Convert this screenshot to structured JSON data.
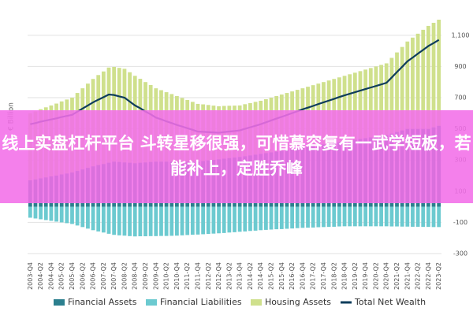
{
  "chart_data": {
    "type": "bar",
    "stacked": true,
    "ylabel": "€ Billion",
    "categories": [
      "2003-Q4",
      null,
      "2004-Q2",
      null,
      "2004-Q4",
      null,
      "2005-Q2",
      null,
      "2005-Q4",
      null,
      "2006-Q2",
      null,
      "2006-Q4",
      null,
      "2007-Q2",
      null,
      "2007-Q4",
      null,
      "2008-Q2",
      null,
      "2008-Q4",
      null,
      "2009-Q2",
      null,
      "2009-Q4",
      null,
      "2010-Q2",
      null,
      "2010-Q4",
      null,
      "2011-Q2",
      null,
      "2011-Q4",
      null,
      "2012-Q2",
      null,
      "2012-Q4",
      null,
      "2013-Q2",
      null,
      "2013-Q4",
      null,
      "2014-Q2",
      null,
      "2014-Q4",
      null,
      "2015-Q2",
      null,
      "2015-Q4",
      null,
      "2016-Q2",
      null,
      "2016-Q4",
      null,
      "2017-Q2",
      null,
      "2017-Q4",
      null,
      "2018-Q2",
      null,
      "2018-Q4",
      null,
      "2019-Q2",
      null,
      "2019-Q4",
      null,
      "2020-Q2",
      null,
      "2020-Q4",
      null,
      "2021-Q2",
      null,
      "2021-Q4",
      null,
      "2022-Q2",
      null,
      "2022-Q4",
      null,
      "2023-Q2"
    ],
    "series": [
      {
        "name": "Financial Assets",
        "color": "#2b7f8e",
        "values": [
          170,
          176,
          183,
          189,
          195,
          201,
          208,
          214,
          220,
          230,
          240,
          250,
          260,
          268,
          275,
          283,
          290,
          288,
          285,
          283,
          280,
          283,
          285,
          288,
          290,
          290,
          290,
          290,
          290,
          290,
          290,
          290,
          290,
          294,
          298,
          301,
          305,
          309,
          313,
          316,
          320,
          325,
          330,
          335,
          340,
          345,
          350,
          355,
          360,
          365,
          370,
          375,
          380,
          385,
          390,
          395,
          400,
          405,
          410,
          415,
          420,
          425,
          430,
          435,
          440,
          445,
          450,
          455,
          460,
          470,
          480,
          490,
          500,
          500,
          500,
          500,
          500,
          510,
          520
        ]
      },
      {
        "name": "Financial Liabilities",
        "color": "#6ccad0",
        "values": [
          -70,
          -75,
          -80,
          -85,
          -90,
          -95,
          -100,
          -105,
          -110,
          -120,
          -130,
          -140,
          -150,
          -158,
          -165,
          -173,
          -180,
          -183,
          -185,
          -188,
          -190,
          -189,
          -189,
          -188,
          -188,
          -187,
          -187,
          -186,
          -185,
          -183,
          -181,
          -179,
          -178,
          -176,
          -174,
          -172,
          -170,
          -168,
          -165,
          -163,
          -160,
          -158,
          -155,
          -153,
          -150,
          -148,
          -146,
          -144,
          -143,
          -141,
          -139,
          -137,
          -135,
          -134,
          -133,
          -131,
          -130,
          -129,
          -128,
          -126,
          -125,
          -125,
          -125,
          -125,
          -125,
          -125,
          -125,
          -125,
          -125,
          -126,
          -126,
          -127,
          -127,
          -128,
          -128,
          -129,
          -129,
          -130,
          -130
        ]
      },
      {
        "name": "Housing Assets",
        "color": "#cfe08c",
        "values": [
          430,
          436,
          443,
          449,
          455,
          461,
          468,
          474,
          480,
          500,
          520,
          540,
          560,
          577,
          593,
          610,
          607,
          603,
          600,
          580,
          560,
          538,
          515,
          493,
          470,
          458,
          445,
          433,
          420,
          408,
          395,
          383,
          370,
          363,
          355,
          348,
          340,
          338,
          335,
          333,
          330,
          333,
          335,
          338,
          340,
          345,
          350,
          355,
          360,
          365,
          370,
          375,
          380,
          385,
          390,
          395,
          400,
          405,
          410,
          415,
          420,
          425,
          430,
          435,
          440,
          445,
          450,
          455,
          460,
          485,
          510,
          535,
          560,
          585,
          610,
          635,
          660,
          670,
          680
        ]
      },
      {
        "name": "Total Net Wealth",
        "color": "#0e3d5c",
        "type": "line",
        "values": [
          530,
          537,
          546,
          553,
          560,
          567,
          576,
          583,
          590,
          610,
          630,
          650,
          670,
          687,
          703,
          720,
          717,
          708,
          700,
          675,
          650,
          632,
          611,
          593,
          572,
          561,
          548,
          537,
          525,
          515,
          504,
          494,
          482,
          481,
          479,
          477,
          475,
          479,
          483,
          486,
          490,
          500,
          510,
          520,
          530,
          542,
          554,
          566,
          577,
          589,
          601,
          613,
          625,
          636,
          647,
          659,
          670,
          681,
          692,
          704,
          715,
          725,
          735,
          745,
          755,
          765,
          775,
          785,
          795,
          829,
          864,
          898,
          933,
          957,
          982,
          1006,
          1031,
          1050,
          1070
        ]
      }
    ],
    "ylim": [
      -300,
      1200
    ],
    "yticks": [
      -300,
      -100,
      100,
      300,
      500,
      700,
      900,
      {
        "value": 1100,
        "label": "1,100"
      }
    ],
    "grid": true
  },
  "banner": {
    "text": "线上实盘杠杆平台 斗转星移很强，可惜慕容复有一武学短板，若能补上，定胜乔峰"
  }
}
